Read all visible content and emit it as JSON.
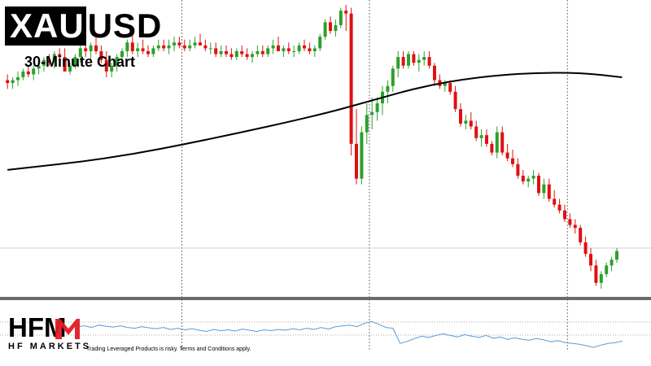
{
  "header": {
    "symbol_part1": "XAU",
    "symbol_part2": "USD",
    "subtitle": "30-Minute Chart"
  },
  "footer": {
    "logo_letters": "HFM",
    "logo_tagline": "HF MARKETS",
    "disclaimer": "Trading Leveraged Products is risky. Terms and Conditions apply."
  },
  "colors": {
    "up": "#2ca02c",
    "down": "#e01010",
    "ma": "#000000",
    "indicator": "#5b9bd5",
    "logo_accent": "#e21b22"
  },
  "chart_data": [
    {
      "type": "candlestick",
      "title": "",
      "xlabel": "",
      "ylabel": "",
      "ylim": [
        0,
        100
      ],
      "vertical_gridlines_at_candle": [
        34,
        70,
        108
      ],
      "horizontal_reference": 16,
      "candles": [
        [
          74,
          76,
          71,
          73
        ],
        [
          73,
          75,
          71,
          74
        ],
        [
          74,
          77,
          72,
          75
        ],
        [
          75,
          78,
          74,
          77
        ],
        [
          77,
          79,
          75,
          76
        ],
        [
          76,
          79,
          74,
          78
        ],
        [
          78,
          80,
          76,
          79
        ],
        [
          79,
          82,
          77,
          81
        ],
        [
          81,
          83,
          79,
          80
        ],
        [
          80,
          84,
          78,
          83
        ],
        [
          83,
          85,
          80,
          82
        ],
        [
          82,
          85,
          78,
          77
        ],
        [
          77,
          80,
          76,
          79
        ],
        [
          79,
          83,
          78,
          82
        ],
        [
          82,
          86,
          80,
          85
        ],
        [
          85,
          88,
          82,
          84
        ],
        [
          84,
          87,
          81,
          86
        ],
        [
          86,
          90,
          83,
          84
        ],
        [
          84,
          86,
          80,
          81
        ],
        [
          81,
          84,
          75,
          77
        ],
        [
          77,
          80,
          75,
          79
        ],
        [
          79,
          83,
          77,
          82
        ],
        [
          82,
          85,
          80,
          84
        ],
        [
          84,
          88,
          82,
          87
        ],
        [
          87,
          90,
          83,
          84
        ],
        [
          84,
          87,
          82,
          85
        ],
        [
          85,
          88,
          83,
          84
        ],
        [
          84,
          86,
          82,
          83
        ],
        [
          83,
          86,
          82,
          85
        ],
        [
          85,
          88,
          84,
          86
        ],
        [
          86,
          88,
          84,
          85
        ],
        [
          85,
          88,
          83,
          86
        ],
        [
          86,
          89,
          84,
          87
        ],
        [
          87,
          89,
          85,
          86
        ],
        [
          86,
          88,
          84,
          85
        ],
        [
          85,
          88,
          84,
          86
        ],
        [
          86,
          89,
          85,
          87
        ],
        [
          87,
          90,
          86,
          86
        ],
        [
          86,
          88,
          84,
          85
        ],
        [
          85,
          87,
          83,
          85
        ],
        [
          85,
          87,
          82,
          83
        ],
        [
          83,
          86,
          82,
          84
        ],
        [
          84,
          86,
          82,
          83
        ],
        [
          83,
          85,
          81,
          82
        ],
        [
          82,
          85,
          81,
          84
        ],
        [
          84,
          86,
          82,
          83
        ],
        [
          83,
          85,
          81,
          82
        ],
        [
          82,
          84,
          80,
          83
        ],
        [
          83,
          86,
          82,
          84
        ],
        [
          84,
          86,
          82,
          83
        ],
        [
          83,
          86,
          82,
          85
        ],
        [
          85,
          88,
          83,
          86
        ],
        [
          86,
          89,
          84,
          84
        ],
        [
          84,
          86,
          82,
          85
        ],
        [
          85,
          87,
          83,
          84
        ],
        [
          84,
          86,
          82,
          84
        ],
        [
          84,
          87,
          83,
          86
        ],
        [
          86,
          88,
          84,
          85
        ],
        [
          85,
          87,
          83,
          84
        ],
        [
          84,
          86,
          82,
          85
        ],
        [
          85,
          90,
          84,
          89
        ],
        [
          89,
          95,
          88,
          94
        ],
        [
          94,
          96,
          90,
          91
        ],
        [
          91,
          95,
          89,
          93
        ],
        [
          93,
          99,
          92,
          98
        ],
        [
          98,
          100,
          91,
          97
        ],
        [
          97,
          99,
          48,
          52
        ],
        [
          52,
          64,
          38,
          40
        ],
        [
          40,
          58,
          38,
          56
        ],
        [
          56,
          66,
          52,
          62
        ],
        [
          62,
          68,
          57,
          63
        ],
        [
          63,
          68,
          60,
          66
        ],
        [
          66,
          72,
          62,
          70
        ],
        [
          70,
          74,
          66,
          72
        ],
        [
          72,
          79,
          70,
          78
        ],
        [
          78,
          84,
          75,
          82
        ],
        [
          82,
          84,
          78,
          79
        ],
        [
          79,
          84,
          78,
          83
        ],
        [
          83,
          84,
          79,
          80
        ],
        [
          80,
          83,
          77,
          81
        ],
        [
          81,
          84,
          79,
          82
        ],
        [
          82,
          84,
          78,
          79
        ],
        [
          79,
          80,
          72,
          74
        ],
        [
          74,
          76,
          71,
          72
        ],
        [
          72,
          74,
          70,
          73
        ],
        [
          73,
          74,
          69,
          70
        ],
        [
          70,
          72,
          63,
          64
        ],
        [
          64,
          66,
          58,
          59
        ],
        [
          59,
          62,
          57,
          60
        ],
        [
          60,
          63,
          57,
          58
        ],
        [
          58,
          60,
          53,
          54
        ],
        [
          54,
          57,
          51,
          55
        ],
        [
          55,
          57,
          51,
          52
        ],
        [
          52,
          53,
          48,
          49
        ],
        [
          49,
          58,
          47,
          56
        ],
        [
          56,
          58,
          48,
          49
        ],
        [
          49,
          52,
          46,
          47
        ],
        [
          47,
          50,
          44,
          45
        ],
        [
          45,
          47,
          40,
          41
        ],
        [
          41,
          43,
          38,
          39
        ],
        [
          39,
          41,
          37,
          40
        ],
        [
          40,
          43,
          38,
          41
        ],
        [
          41,
          42,
          34,
          35
        ],
        [
          35,
          40,
          33,
          38
        ],
        [
          38,
          40,
          32,
          33
        ],
        [
          33,
          36,
          30,
          31
        ],
        [
          31,
          33,
          28,
          29
        ],
        [
          29,
          31,
          25,
          26
        ],
        [
          26,
          28,
          23,
          24
        ],
        [
          24,
          26,
          21,
          23
        ],
        [
          23,
          24,
          17,
          18
        ],
        [
          18,
          20,
          13,
          14
        ],
        [
          14,
          16,
          8,
          10
        ],
        [
          10,
          12,
          3,
          4
        ],
        [
          4,
          8,
          2,
          7
        ],
        [
          7,
          11,
          6,
          10
        ],
        [
          10,
          13,
          8,
          12
        ],
        [
          12,
          16,
          11,
          15
        ]
      ],
      "moving_average_at_candle": [
        [
          0,
          43
        ],
        [
          20,
          47
        ],
        [
          40,
          54
        ],
        [
          60,
          62
        ],
        [
          70,
          67
        ],
        [
          80,
          72
        ],
        [
          90,
          75
        ],
        [
          100,
          76.5
        ],
        [
          110,
          76.6
        ],
        [
          118,
          75
        ]
      ]
    },
    {
      "type": "line",
      "title": "",
      "ylim": [
        0,
        100
      ],
      "values": [
        62,
        64,
        60,
        66,
        63,
        61,
        64,
        60,
        58,
        62,
        59,
        57,
        60,
        55,
        58,
        54,
        57,
        53,
        50,
        55,
        52,
        54,
        51,
        56,
        53,
        50,
        54,
        52,
        55,
        53,
        57,
        54,
        58,
        55,
        60,
        56,
        62,
        64,
        66,
        62,
        70,
        75,
        68,
        60,
        58,
        20,
        25,
        32,
        38,
        35,
        40,
        44,
        40,
        36,
        42,
        38,
        35,
        40,
        33,
        36,
        30,
        34,
        30,
        28,
        32,
        29,
        24,
        27,
        22,
        20,
        18,
        14,
        10,
        16,
        20,
        22,
        26
      ]
    }
  ]
}
